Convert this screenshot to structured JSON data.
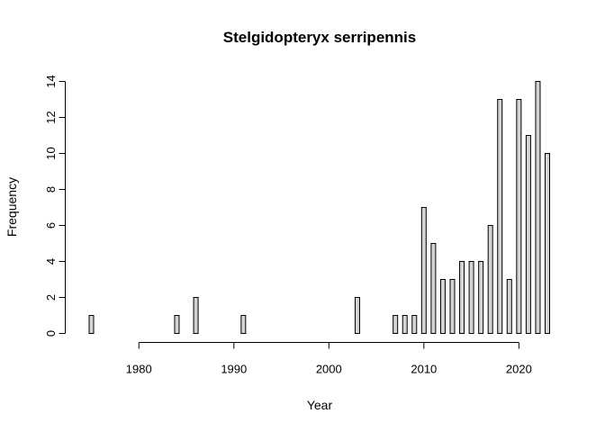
{
  "chart_data": {
    "type": "bar",
    "title": "Stelgidopteryx serripennis",
    "xlabel": "Year",
    "ylabel": "Frequency",
    "x": [
      1975,
      1976,
      1977,
      1978,
      1979,
      1980,
      1981,
      1982,
      1983,
      1984,
      1985,
      1986,
      1987,
      1988,
      1989,
      1990,
      1991,
      1992,
      1993,
      1994,
      1995,
      1996,
      1997,
      1998,
      1999,
      2000,
      2001,
      2002,
      2003,
      2004,
      2005,
      2006,
      2007,
      2008,
      2009,
      2010,
      2011,
      2012,
      2013,
      2014,
      2015,
      2016,
      2017,
      2018,
      2019,
      2020,
      2021,
      2022,
      2023
    ],
    "values": [
      1,
      0,
      0,
      0,
      0,
      0,
      0,
      0,
      0,
      1,
      0,
      2,
      0,
      0,
      0,
      0,
      1,
      0,
      0,
      0,
      0,
      0,
      0,
      0,
      0,
      0,
      0,
      0,
      2,
      0,
      0,
      0,
      1,
      1,
      1,
      7,
      5,
      3,
      3,
      4,
      4,
      4,
      6,
      13,
      3,
      13,
      11,
      14,
      10
    ],
    "xticks": [
      "1980",
      "1990",
      "2000",
      "2010",
      "2020"
    ],
    "yticks": [
      "0",
      "2",
      "4",
      "6",
      "8",
      "10",
      "12",
      "14"
    ],
    "xlim": [
      1975,
      2023
    ],
    "ylim": [
      0,
      14
    ],
    "grid": false,
    "bar_fill": "#d3d3d3",
    "bar_stroke": "#000000"
  }
}
